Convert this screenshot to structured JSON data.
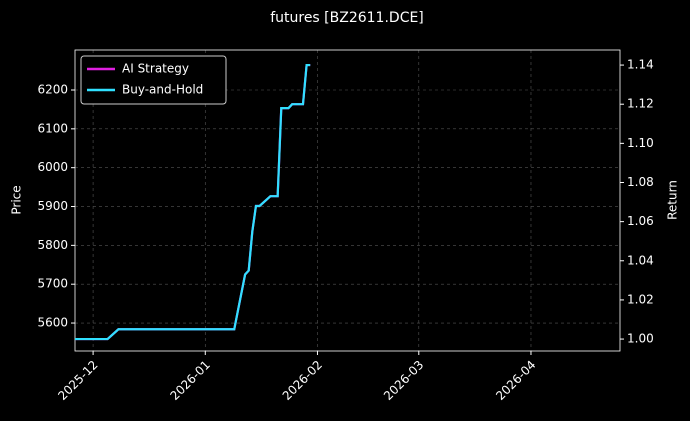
{
  "chart_data": {
    "type": "line",
    "title": "futures [BZ2611.DCE]",
    "ylabel": "Price",
    "y2label": "Return",
    "x": [
      -5,
      4,
      7,
      39,
      42,
      43,
      44,
      45,
      46,
      49,
      51,
      52,
      54,
      55,
      58,
      59,
      60
    ],
    "xlim": [
      -5,
      145.6
    ],
    "xticks": [
      {
        "value": 0,
        "label": "2025-12"
      },
      {
        "value": 31,
        "label": "2026-01"
      },
      {
        "value": 62,
        "label": "2026-02"
      },
      {
        "value": 90,
        "label": "2026-03"
      },
      {
        "value": 121,
        "label": "2026-04"
      }
    ],
    "ylim": [
      5528,
      6303
    ],
    "yticks": [
      5600,
      5700,
      5800,
      5900,
      6000,
      6100,
      6200
    ],
    "y2lim": [
      0.9939,
      1.1477
    ],
    "y2ticks": [
      {
        "value": 1.0,
        "label": "1.00"
      },
      {
        "value": 1.02,
        "label": "1.02"
      },
      {
        "value": 1.04,
        "label": "1.04"
      },
      {
        "value": 1.06,
        "label": "1.06"
      },
      {
        "value": 1.08,
        "label": "1.08"
      },
      {
        "value": 1.1,
        "label": "1.10"
      },
      {
        "value": 1.12,
        "label": "1.12"
      },
      {
        "value": 1.14,
        "label": "1.14"
      }
    ],
    "grid": true,
    "legend": "upper left",
    "series": [
      {
        "name": "AI Strategy",
        "color": "#e020e0",
        "axis": "y2",
        "values": [
          1.0,
          1.0,
          1.005,
          1.005,
          1.033,
          1.035,
          1.055,
          1.068,
          1.068,
          1.073,
          1.073,
          1.118,
          1.118,
          1.12,
          1.12,
          1.14,
          1.14
        ]
      },
      {
        "name": "Buy-and-Hold",
        "color": "#30e0ff",
        "axis": "y2",
        "values": [
          1.0,
          1.0,
          1.005,
          1.005,
          1.033,
          1.035,
          1.055,
          1.068,
          1.068,
          1.073,
          1.073,
          1.118,
          1.118,
          1.12,
          1.12,
          1.14,
          1.14
        ]
      }
    ]
  }
}
